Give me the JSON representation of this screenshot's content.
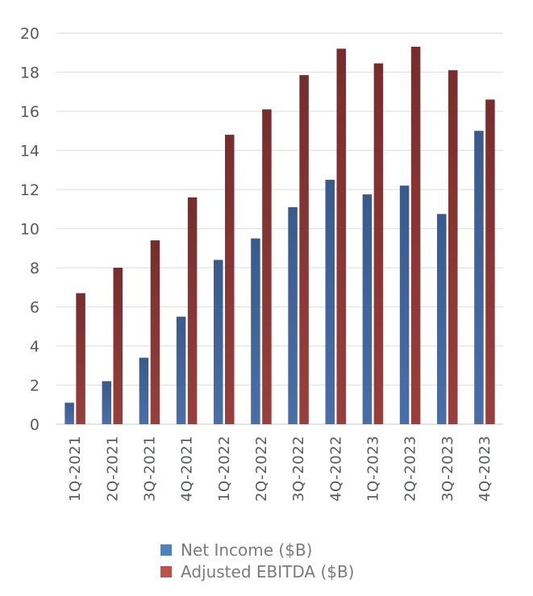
{
  "chart_data": {
    "type": "bar",
    "title": "",
    "xlabel": "",
    "ylabel": "",
    "ylim": [
      0,
      20
    ],
    "yticks": [
      0,
      2,
      4,
      6,
      8,
      10,
      12,
      14,
      16,
      18,
      20
    ],
    "grid": true,
    "legend_position": "bottom",
    "categories": [
      "1Q-2021",
      "2Q-2021",
      "3Q-2021",
      "4Q-2021",
      "1Q-2022",
      "2Q-2022",
      "3Q-2022",
      "4Q-2022",
      "1Q-2023",
      "2Q-2023",
      "3Q-2023",
      "4Q-2023"
    ],
    "series": [
      {
        "name": "Net Income ($B)",
        "color": "#4F81BD",
        "values": [
          1.1,
          2.2,
          3.4,
          5.5,
          8.4,
          9.5,
          11.1,
          12.5,
          11.75,
          12.2,
          10.75,
          15.0
        ]
      },
      {
        "name": "Adjusted EBITDA ($B)",
        "color": "#C0504D",
        "values": [
          6.7,
          8.0,
          9.4,
          11.6,
          14.8,
          16.1,
          17.85,
          19.2,
          18.45,
          19.3,
          18.1,
          16.6
        ]
      }
    ]
  }
}
